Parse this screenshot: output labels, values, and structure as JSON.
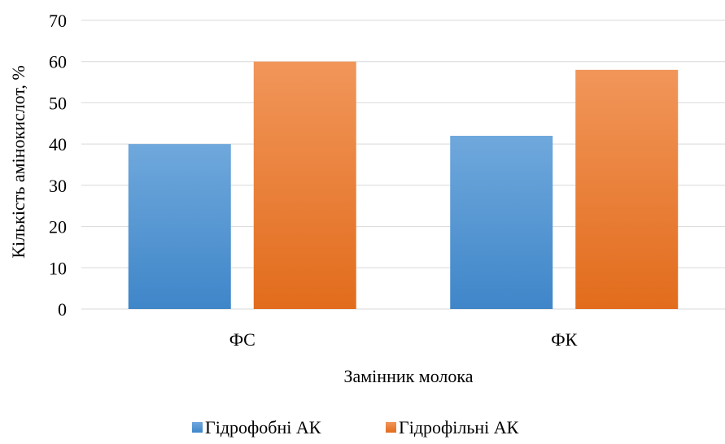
{
  "chart_data": {
    "type": "bar",
    "title": "",
    "xlabel": "Замінник молока",
    "ylabel": "Кількість амінокислот, %",
    "categories": [
      "ФС",
      "ФК"
    ],
    "series": [
      {
        "name": "Гідрофобні АК",
        "values": [
          40,
          42
        ],
        "color": "#5b9bd5"
      },
      {
        "name": "Гідрофільні АК",
        "values": [
          60,
          58
        ],
        "color": "#ed7d31"
      }
    ],
    "ylim": [
      0,
      70
    ],
    "yticks": [
      0,
      10,
      20,
      30,
      40,
      50,
      60,
      70
    ],
    "grid": true,
    "legend": "bottom"
  }
}
